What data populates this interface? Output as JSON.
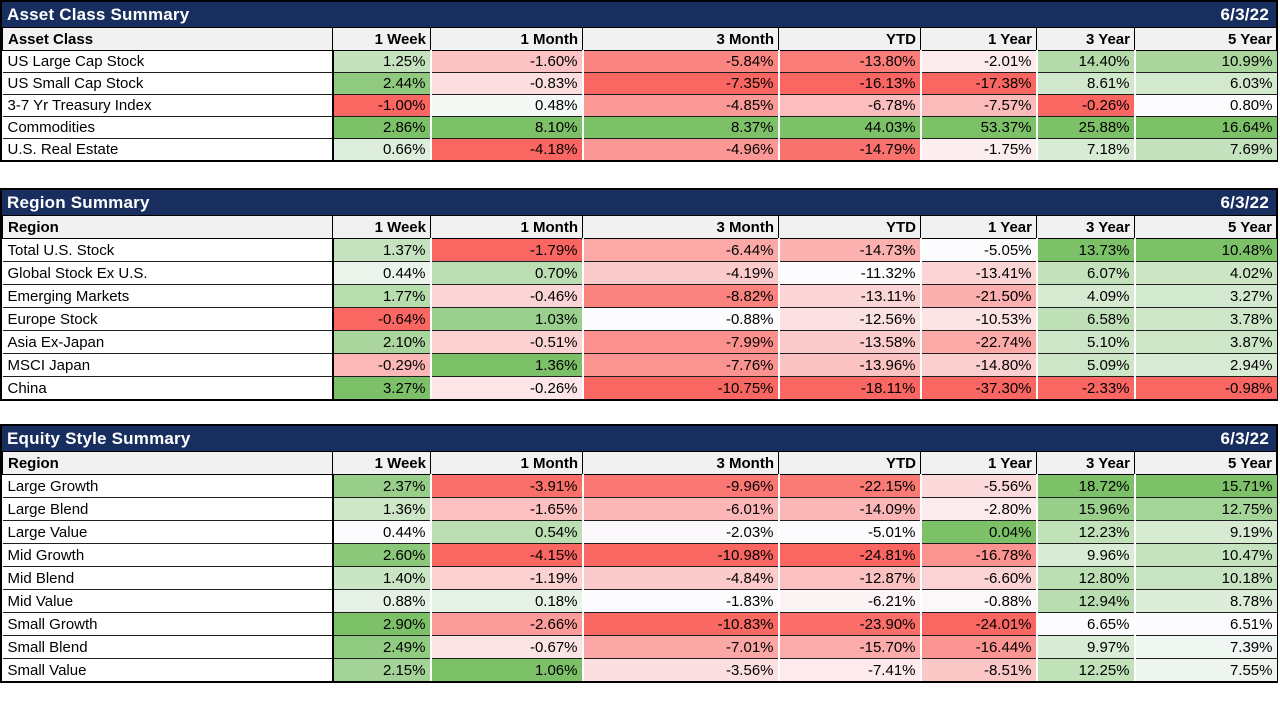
{
  "value_suffix": "%",
  "colors": {
    "title_bar_bg": "#172E5E",
    "title_bar_text": "#FFFFFF",
    "column_header_bg": "#F1F1F1",
    "cell_text": "#000000",
    "heat_negative": "#FA6661",
    "heat_neutral": "#FCFCFF",
    "heat_positive": "#7CC168",
    "grid_line": "#1F1F1F",
    "panel_border": "#000000"
  },
  "chart_data": [
    {
      "type": "heatmap",
      "title": "Asset Class Summary",
      "date": "6/3/22",
      "label_header": "Asset Class",
      "columns": [
        "1 Week",
        "1 Month",
        "3 Month",
        "YTD",
        "1 Year",
        "3 Year",
        "5 Year"
      ],
      "unit": "percent return",
      "color_scale": "per column: column min -> red, 0 -> white, column max -> green; clamped to white at column min/max when column is all-positive/all-negative",
      "rows": [
        {
          "label": "US Large Cap Stock",
          "values": [
            1.25,
            -1.6,
            -5.84,
            -13.8,
            -2.01,
            14.4,
            10.99
          ]
        },
        {
          "label": "US Small Cap Stock",
          "values": [
            2.44,
            -0.83,
            -7.35,
            -16.13,
            -17.38,
            8.61,
            6.03
          ]
        },
        {
          "label": "3-7 Yr Treasury Index",
          "values": [
            -1.0,
            0.48,
            -4.85,
            -6.78,
            -7.57,
            -0.26,
            0.8
          ]
        },
        {
          "label": "Commodities",
          "values": [
            2.86,
            8.1,
            8.37,
            44.03,
            53.37,
            25.88,
            16.64
          ]
        },
        {
          "label": "U.S. Real Estate",
          "values": [
            0.66,
            -4.18,
            -4.96,
            -14.79,
            -1.75,
            7.18,
            7.69
          ]
        }
      ]
    },
    {
      "type": "heatmap",
      "title": "Region Summary",
      "date": "6/3/22",
      "label_header": "Region",
      "columns": [
        "1 Week",
        "1 Month",
        "3 Month",
        "YTD",
        "1 Year",
        "3 Year",
        "5 Year"
      ],
      "unit": "percent return",
      "color_scale": "per column: column min -> red, 0 -> white, column max -> green; clamped to white at column min/max when column is all-positive/all-negative",
      "rows": [
        {
          "label": "Total U.S. Stock",
          "values": [
            1.37,
            -1.79,
            -6.44,
            -14.73,
            -5.05,
            13.73,
            10.48
          ]
        },
        {
          "label": "Global Stock Ex U.S.",
          "values": [
            0.44,
            0.7,
            -4.19,
            -11.32,
            -13.41,
            6.07,
            4.02
          ]
        },
        {
          "label": "Emerging Markets",
          "values": [
            1.77,
            -0.46,
            -8.82,
            -13.11,
            -21.5,
            4.09,
            3.27
          ]
        },
        {
          "label": "Europe Stock",
          "values": [
            -0.64,
            1.03,
            -0.88,
            -12.56,
            -10.53,
            6.58,
            3.78
          ]
        },
        {
          "label": "Asia Ex-Japan",
          "values": [
            2.1,
            -0.51,
            -7.99,
            -13.58,
            -22.74,
            5.1,
            3.87
          ]
        },
        {
          "label": "MSCI Japan",
          "values": [
            -0.29,
            1.36,
            -7.76,
            -13.96,
            -14.8,
            5.09,
            2.94
          ]
        },
        {
          "label": "China",
          "values": [
            3.27,
            -0.26,
            -10.75,
            -18.11,
            -37.3,
            -2.33,
            -0.98
          ]
        }
      ]
    },
    {
      "type": "heatmap",
      "title": "Equity Style Summary",
      "date": "6/3/22",
      "label_header": "Region",
      "columns": [
        "1 Week",
        "1 Month",
        "3 Month",
        "YTD",
        "1 Year",
        "3 Year",
        "5 Year"
      ],
      "unit": "percent return",
      "color_scale": "per column: column min -> red, 0 -> white, column max -> green; clamped to white at column min/max when column is all-positive/all-negative",
      "rows": [
        {
          "label": "Large Growth",
          "values": [
            2.37,
            -3.91,
            -9.96,
            -22.15,
            -5.56,
            18.72,
            15.71
          ]
        },
        {
          "label": "Large Blend",
          "values": [
            1.36,
            -1.65,
            -6.01,
            -14.09,
            -2.8,
            15.96,
            12.75
          ]
        },
        {
          "label": "Large Value",
          "values": [
            0.44,
            0.54,
            -2.03,
            -5.01,
            0.04,
            12.23,
            9.19
          ]
        },
        {
          "label": "Mid Growth",
          "values": [
            2.6,
            -4.15,
            -10.98,
            -24.81,
            -16.78,
            9.96,
            10.47
          ]
        },
        {
          "label": "Mid Blend",
          "values": [
            1.4,
            -1.19,
            -4.84,
            -12.87,
            -6.6,
            12.8,
            10.18
          ]
        },
        {
          "label": "Mid Value",
          "values": [
            0.88,
            0.18,
            -1.83,
            -6.21,
            -0.88,
            12.94,
            8.78
          ]
        },
        {
          "label": "Small Growth",
          "values": [
            2.9,
            -2.66,
            -10.83,
            -23.9,
            -24.01,
            6.65,
            6.51
          ]
        },
        {
          "label": "Small Blend",
          "values": [
            2.49,
            -0.67,
            -7.01,
            -15.7,
            -16.44,
            9.97,
            7.39
          ]
        },
        {
          "label": "Small Value",
          "values": [
            2.15,
            1.06,
            -3.56,
            -7.41,
            -8.51,
            12.25,
            7.55
          ]
        }
      ]
    }
  ]
}
